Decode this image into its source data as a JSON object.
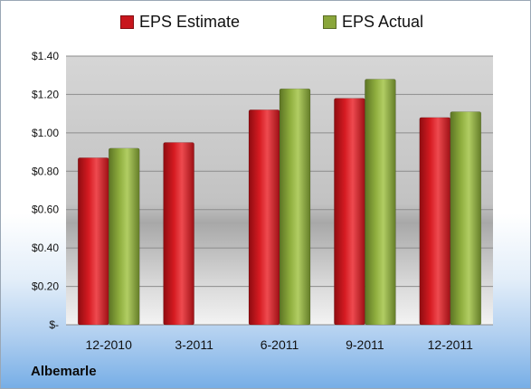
{
  "company": "Albemarle",
  "chart_data": {
    "type": "bar",
    "categories": [
      "12-2010",
      "3-2011",
      "6-2011",
      "9-2011",
      "12-2011"
    ],
    "series": [
      {
        "name": "EPS Estimate",
        "color": "#c8161d",
        "values": [
          0.87,
          0.95,
          1.12,
          1.18,
          1.08
        ]
      },
      {
        "name": "EPS Actual",
        "color": "#8aa63b",
        "values": [
          0.92,
          null,
          1.23,
          1.28,
          1.11
        ]
      }
    ],
    "ylim": [
      0,
      1.4
    ],
    "yticks": [
      0,
      0.2,
      0.4,
      0.6,
      0.8,
      1.0,
      1.2,
      1.4
    ],
    "ytick_labels": [
      "$-",
      "$0.20",
      "$0.40",
      "$0.60",
      "$0.80",
      "$1.00",
      "$1.20",
      "$1.40"
    ],
    "grid": true,
    "legend_position": "top"
  }
}
